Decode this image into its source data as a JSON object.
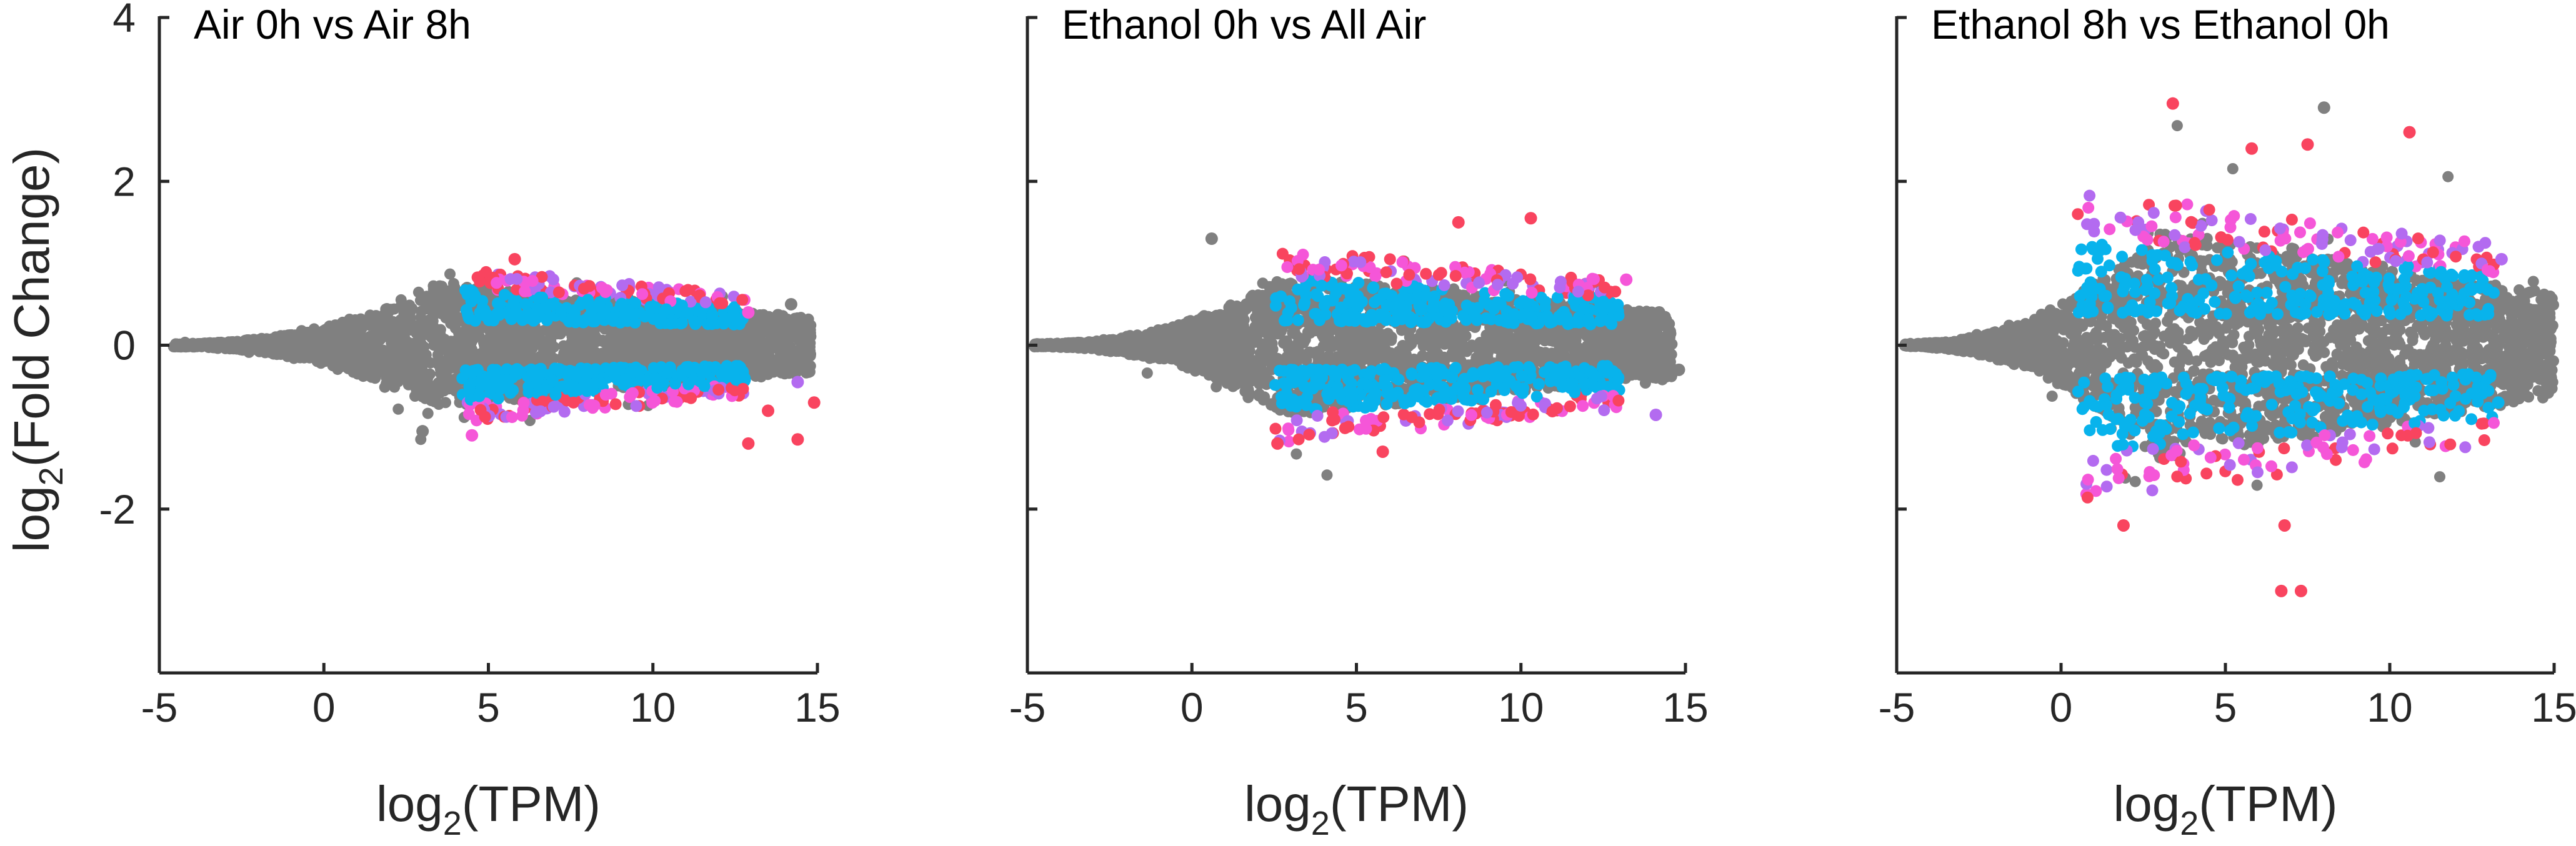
{
  "colors": {
    "background_genes": "#808080",
    "highlight_red": "#f9445f",
    "highlight_pink": "#f556d8",
    "highlight_purple": "#b36bf0",
    "highlight_cyan": "#08b3ec"
  },
  "chart_data": [
    {
      "type": "scatter",
      "title": "Air 0h vs Air 8h",
      "xlabel_base": "log",
      "xlabel_sub": "2",
      "xlabel_rest": "(TPM)",
      "ylabel_base": "log",
      "ylabel_sub": "2",
      "ylabel_rest": "(Fold Change)",
      "xlim": [
        -5,
        15
      ],
      "ylim": [
        -4,
        4
      ],
      "xticks": [
        "-5",
        "0",
        "5",
        "10",
        "15"
      ],
      "yticks": [
        "-2",
        "0",
        "2",
        "4"
      ],
      "show_ytick_labels": true,
      "grid": false,
      "density": {
        "x_min": -4.6,
        "x_max": 14.8,
        "peak_spread": 0.75,
        "peak_x": 3.5
      },
      "highlight": {
        "x_min": 4.2,
        "x_max": 12.8,
        "y_abs_min": 0.25,
        "y_abs_max": 0.95
      },
      "outliers": [
        {
          "x": 13.5,
          "y": -0.8,
          "c": "highlight_red"
        },
        {
          "x": 12.9,
          "y": -1.2,
          "c": "highlight_red"
        },
        {
          "x": 14.4,
          "y": -1.15,
          "c": "highlight_red"
        },
        {
          "x": 14.9,
          "y": -0.7,
          "c": "highlight_red"
        },
        {
          "x": 4.5,
          "y": -1.1,
          "c": "highlight_pink"
        },
        {
          "x": 14.2,
          "y": 0.5,
          "c": "background_genes"
        },
        {
          "x": 12.9,
          "y": 0.4,
          "c": "highlight_pink"
        },
        {
          "x": 14.4,
          "y": -0.45,
          "c": "highlight_purple"
        },
        {
          "x": 5.8,
          "y": 1.05,
          "c": "highlight_red"
        },
        {
          "x": 3.0,
          "y": -1.05,
          "c": "background_genes"
        }
      ]
    },
    {
      "type": "scatter",
      "title": "Ethanol 0h vs All Air",
      "xlabel_base": "log",
      "xlabel_sub": "2",
      "xlabel_rest": "(TPM)",
      "xlim": [
        -5,
        15
      ],
      "ylim": [
        -4,
        4
      ],
      "xticks": [
        "-5",
        "0",
        "5",
        "10",
        "15"
      ],
      "yticks": [
        "",
        "",
        "",
        ""
      ],
      "show_ytick_labels": false,
      "grid": false,
      "density": {
        "x_min": -4.8,
        "x_max": 14.6,
        "peak_spread": 0.85,
        "peak_x": 3.0
      },
      "highlight": {
        "x_min": 2.5,
        "x_max": 13.0,
        "y_abs_min": 0.25,
        "y_abs_max": 1.2
      },
      "outliers": [
        {
          "x": 10.3,
          "y": 1.55,
          "c": "highlight_red"
        },
        {
          "x": 8.1,
          "y": 1.5,
          "c": "highlight_red"
        },
        {
          "x": 5.8,
          "y": -1.3,
          "c": "highlight_red"
        },
        {
          "x": 14.1,
          "y": -0.85,
          "c": "highlight_purple"
        },
        {
          "x": 13.2,
          "y": 0.8,
          "c": "highlight_pink"
        },
        {
          "x": 0.6,
          "y": 1.3,
          "c": "background_genes"
        },
        {
          "x": 14.2,
          "y": 0.4,
          "c": "background_genes"
        },
        {
          "x": 14.8,
          "y": -0.3,
          "c": "background_genes"
        },
        {
          "x": 2.6,
          "y": -1.2,
          "c": "highlight_red"
        }
      ]
    },
    {
      "type": "scatter",
      "title": "Ethanol 8h vs Ethanol 0h",
      "xlabel_base": "log",
      "xlabel_sub": "2",
      "xlabel_rest": "(TPM)",
      "xlim": [
        -5,
        15
      ],
      "ylim": [
        -4,
        4
      ],
      "xticks": [
        "-5",
        "0",
        "5",
        "10",
        "15"
      ],
      "yticks": [
        "",
        "",
        "",
        ""
      ],
      "show_ytick_labels": false,
      "grid": false,
      "density": {
        "x_min": -4.8,
        "x_max": 15.0,
        "peak_spread": 1.4,
        "peak_x": 3.0
      },
      "highlight": {
        "x_min": 0.5,
        "x_max": 13.2,
        "y_abs_min": 0.35,
        "y_abs_max": 1.9
      },
      "outliers": [
        {
          "x": 3.4,
          "y": 2.95,
          "c": "highlight_red"
        },
        {
          "x": 10.6,
          "y": 2.6,
          "c": "highlight_red"
        },
        {
          "x": 7.5,
          "y": 2.45,
          "c": "highlight_red"
        },
        {
          "x": 5.8,
          "y": 2.4,
          "c": "highlight_red"
        },
        {
          "x": 6.7,
          "y": -3.0,
          "c": "highlight_red"
        },
        {
          "x": 7.3,
          "y": -3.0,
          "c": "highlight_red"
        },
        {
          "x": 6.8,
          "y": -2.2,
          "c": "highlight_red"
        },
        {
          "x": 1.9,
          "y": -2.2,
          "c": "highlight_red"
        },
        {
          "x": 8.0,
          "y": 2.9,
          "c": "background_genes"
        },
        {
          "x": 13.3,
          "y": -0.7,
          "c": "highlight_cyan"
        },
        {
          "x": 14.8,
          "y": 0.2,
          "c": "background_genes"
        },
        {
          "x": 14.9,
          "y": -0.4,
          "c": "background_genes"
        },
        {
          "x": -4.5,
          "y": 0.0,
          "c": "background_genes"
        },
        {
          "x": 13.4,
          "y": 1.05,
          "c": "highlight_purple"
        }
      ]
    }
  ]
}
